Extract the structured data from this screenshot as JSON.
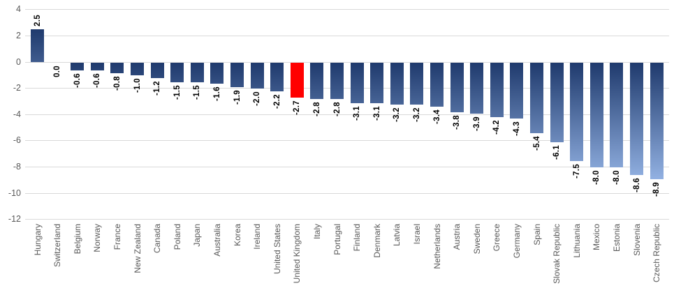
{
  "chart_data": {
    "type": "bar",
    "title": "",
    "xlabel": "",
    "ylabel": "",
    "categories": [
      "Hungary",
      "Switzerland",
      "Belgium",
      "Norway",
      "France",
      "New Zealand",
      "Canada",
      "Poland",
      "Japan",
      "Australia",
      "Korea",
      "Ireland",
      "United States",
      "United Kingdom",
      "Italy",
      "Portugal",
      "Finland",
      "Denmark",
      "Latvia",
      "Israel",
      "Netherlands",
      "Austria",
      "Sweden",
      "Greece",
      "Germany",
      "Spain",
      "Slovak Republic",
      "Lithuania",
      "Mexico",
      "Estonia",
      "Slovenia",
      "Czech Republic"
    ],
    "values": [
      2.5,
      0.0,
      -0.6,
      -0.6,
      -0.8,
      -1.0,
      -1.2,
      -1.5,
      -1.5,
      -1.6,
      -1.9,
      -2.0,
      -2.2,
      -2.7,
      -2.8,
      -2.8,
      -3.1,
      -3.1,
      -3.2,
      -3.2,
      -3.4,
      -3.8,
      -3.9,
      -4.2,
      -4.3,
      -5.4,
      -6.1,
      -7.5,
      -8.0,
      -8.0,
      -8.6,
      -8.9
    ],
    "data_label_decimals": 1,
    "highlight": {
      "category": "United Kingdom",
      "color": "#FF0000"
    },
    "bar_gradient": {
      "top": "#1F3A6D",
      "bottom": "#94B3E4"
    },
    "ylim": [
      -12,
      4
    ],
    "yticks": [
      4,
      2,
      0,
      -2,
      -4,
      -6,
      -8,
      -10,
      -12
    ],
    "grid": "horizontal",
    "legend": "none",
    "colors": {
      "gridline": "#D9D9D9",
      "axis_text": "#595959",
      "data_label_text": "#000000",
      "background": "#FFFFFF"
    }
  }
}
